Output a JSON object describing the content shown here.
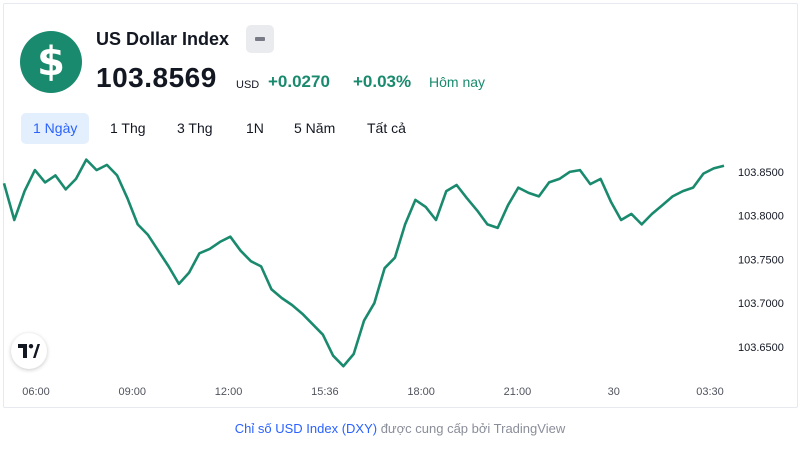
{
  "header": {
    "logo_glyph": "$",
    "title": "US Dollar Index",
    "price": "103.8569",
    "currency": "USD",
    "change": "+0.0270",
    "change_pct": "+0.03%",
    "change_label": "Hôm nay",
    "accent_color": "#1a8a6e"
  },
  "tabs": [
    {
      "label": "1 Ngày",
      "active": true
    },
    {
      "label": "1 Thg",
      "active": false
    },
    {
      "label": "3 Thg",
      "active": false
    },
    {
      "label": "1N",
      "active": false
    },
    {
      "label": "5 Năm",
      "active": false
    },
    {
      "label": "Tất cả",
      "active": false
    }
  ],
  "footer": {
    "link_text": "Chỉ số USD Index (DXY)",
    "rest_text": " được cung cấp bởi TradingView"
  },
  "chart_data": {
    "type": "line",
    "title": "",
    "xlabel": "",
    "ylabel": "",
    "line_color": "#1a8a6e",
    "x_ticks": [
      "06:00",
      "09:00",
      "12:00",
      "15:36",
      "18:00",
      "21:00",
      "30",
      "03:30"
    ],
    "y_ticks": [
      "103.8500",
      "103.8000",
      "103.7500",
      "103.7000",
      "103.6500"
    ],
    "ylim": [
      103.618,
      103.875
    ],
    "grid": false,
    "x": [
      0,
      1,
      2,
      3,
      4,
      5,
      6,
      7,
      8,
      9,
      10,
      11,
      12,
      13,
      14,
      15,
      16,
      17,
      18,
      19,
      20,
      21,
      22,
      23,
      24,
      25,
      26,
      27,
      28,
      29,
      30,
      31,
      32,
      33,
      34,
      35,
      36,
      37,
      38,
      39,
      40,
      41,
      42,
      43,
      44,
      45,
      46,
      47,
      48,
      49,
      50,
      51,
      52,
      53,
      54,
      55,
      56,
      57,
      58,
      59,
      60,
      61,
      62,
      63,
      64,
      65,
      66,
      67,
      68,
      69,
      70
    ],
    "values": [
      103.837,
      103.795,
      103.828,
      103.852,
      103.838,
      103.846,
      103.83,
      103.842,
      103.864,
      103.852,
      103.858,
      103.846,
      103.82,
      103.79,
      103.778,
      103.76,
      103.742,
      103.722,
      103.735,
      103.757,
      103.762,
      103.77,
      103.776,
      103.76,
      103.748,
      103.742,
      103.716,
      103.706,
      103.698,
      103.688,
      103.676,
      103.664,
      103.64,
      103.628,
      103.642,
      103.68,
      103.7,
      103.74,
      103.752,
      103.79,
      103.818,
      103.81,
      103.795,
      103.828,
      103.835,
      103.82,
      103.806,
      103.79,
      103.786,
      103.812,
      103.832,
      103.826,
      103.822,
      103.838,
      103.842,
      103.85,
      103.852,
      103.836,
      103.842,
      103.816,
      103.795,
      103.802,
      103.79,
      103.802,
      103.812,
      103.822,
      103.828,
      103.832,
      103.848,
      103.854,
      103.857
    ]
  }
}
